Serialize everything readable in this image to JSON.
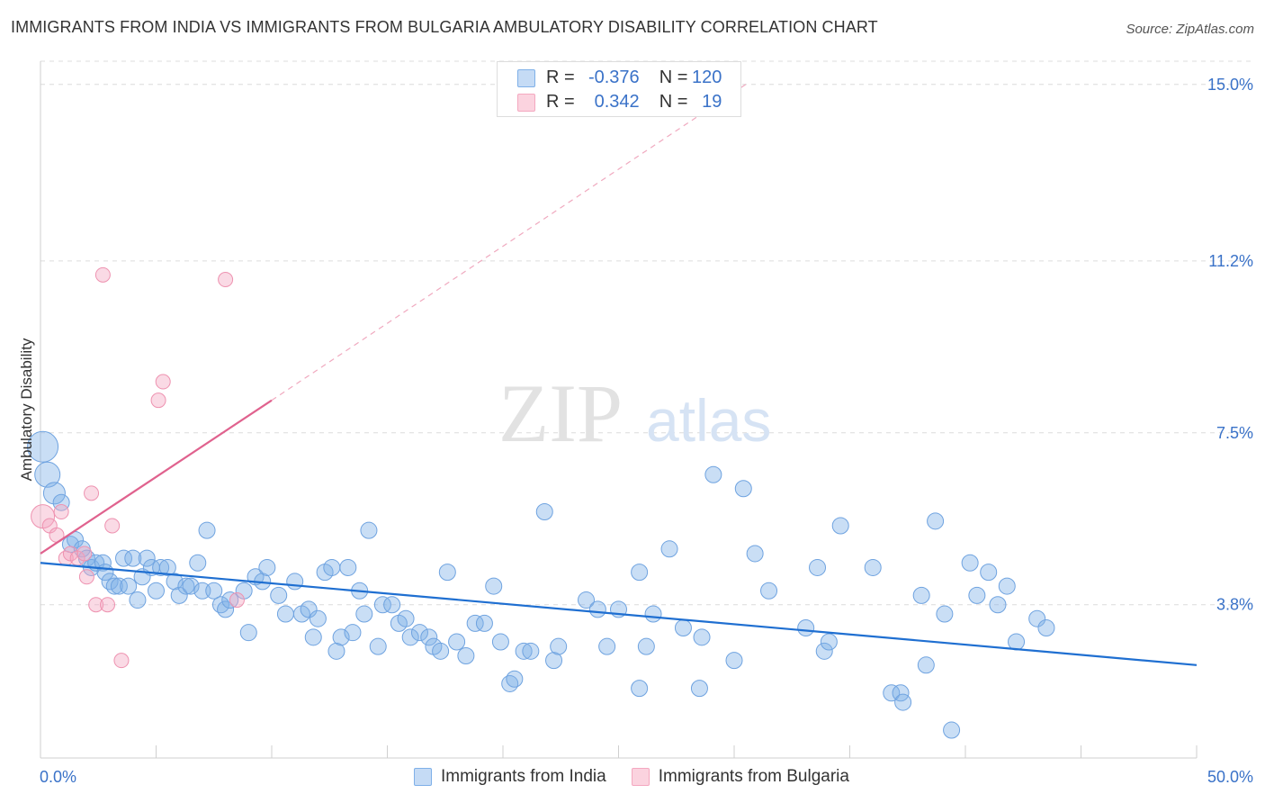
{
  "title": "IMMIGRANTS FROM INDIA VS IMMIGRANTS FROM BULGARIA AMBULATORY DISABILITY CORRELATION CHART",
  "source": "Source: ZipAtlas.com",
  "watermark": {
    "zip": "ZIP",
    "atlas": "atlas"
  },
  "colors": {
    "india": "#7fb0e8",
    "india_line": "#1f6fd1",
    "bulgaria": "#f4a8c0",
    "bulgaria_line": "#e0628e",
    "axis_label": "#3a72c8"
  },
  "stats": {
    "rows": [
      {
        "r_label": "R = ",
        "r_value": "-0.376",
        "n_label": "N = ",
        "n_value": "120"
      },
      {
        "r_label": "R = ",
        "r_value": "0.342",
        "n_label": "N = ",
        "n_value": "19"
      }
    ]
  },
  "legend": {
    "india": "Immigrants from India",
    "bulgaria": "Immigrants from Bulgaria"
  },
  "chart_data": {
    "type": "scatter",
    "title": "IMMIGRANTS FROM INDIA VS IMMIGRANTS FROM BULGARIA AMBULATORY DISABILITY CORRELATION CHART",
    "xlabel": "",
    "ylabel": "Ambulatory Disability",
    "xlim": [
      0,
      50
    ],
    "ylim": [
      0.5,
      15.5
    ],
    "x_tick_labels": [
      "0.0%",
      "50.0%"
    ],
    "y_ticks": [
      3.8,
      7.5,
      11.2,
      15.0
    ],
    "y_tick_labels": [
      "3.8%",
      "7.5%",
      "11.2%",
      "15.0%"
    ],
    "series": [
      {
        "name": "Immigrants from India",
        "r": -0.376,
        "n": 120,
        "trend": {
          "x": [
            0,
            50
          ],
          "y": [
            4.7,
            2.5
          ]
        },
        "points": [
          [
            0.1,
            7.2
          ],
          [
            0.3,
            6.6
          ],
          [
            0.6,
            6.2
          ],
          [
            0.9,
            6.0
          ],
          [
            1.3,
            5.1
          ],
          [
            1.5,
            5.2
          ],
          [
            1.8,
            5.0
          ],
          [
            2.0,
            4.8
          ],
          [
            2.2,
            4.6
          ],
          [
            2.4,
            4.7
          ],
          [
            2.7,
            4.7
          ],
          [
            2.8,
            4.5
          ],
          [
            3.0,
            4.3
          ],
          [
            3.2,
            4.2
          ],
          [
            3.4,
            4.2
          ],
          [
            3.6,
            4.8
          ],
          [
            3.8,
            4.2
          ],
          [
            4.0,
            4.8
          ],
          [
            4.2,
            3.9
          ],
          [
            4.4,
            4.4
          ],
          [
            4.6,
            4.8
          ],
          [
            4.8,
            4.6
          ],
          [
            5.0,
            4.1
          ],
          [
            5.2,
            4.6
          ],
          [
            5.5,
            4.6
          ],
          [
            5.8,
            4.3
          ],
          [
            6.0,
            4.0
          ],
          [
            6.3,
            4.2
          ],
          [
            6.5,
            4.2
          ],
          [
            6.8,
            4.7
          ],
          [
            7.0,
            4.1
          ],
          [
            7.2,
            5.4
          ],
          [
            7.5,
            4.1
          ],
          [
            7.8,
            3.8
          ],
          [
            8.0,
            3.7
          ],
          [
            8.2,
            3.9
          ],
          [
            8.8,
            4.1
          ],
          [
            9.0,
            3.2
          ],
          [
            9.3,
            4.4
          ],
          [
            9.6,
            4.3
          ],
          [
            9.8,
            4.6
          ],
          [
            10.3,
            4.0
          ],
          [
            10.6,
            3.6
          ],
          [
            11.0,
            4.3
          ],
          [
            11.3,
            3.6
          ],
          [
            11.6,
            3.7
          ],
          [
            11.8,
            3.1
          ],
          [
            12.0,
            3.5
          ],
          [
            12.3,
            4.5
          ],
          [
            12.6,
            4.6
          ],
          [
            12.8,
            2.8
          ],
          [
            13.0,
            3.1
          ],
          [
            13.3,
            4.6
          ],
          [
            13.5,
            3.2
          ],
          [
            13.8,
            4.1
          ],
          [
            14.0,
            3.6
          ],
          [
            14.2,
            5.4
          ],
          [
            14.6,
            2.9
          ],
          [
            14.8,
            3.8
          ],
          [
            15.2,
            3.8
          ],
          [
            15.5,
            3.4
          ],
          [
            15.8,
            3.5
          ],
          [
            16.0,
            3.1
          ],
          [
            16.4,
            3.2
          ],
          [
            16.8,
            3.1
          ],
          [
            17.0,
            2.9
          ],
          [
            17.3,
            2.8
          ],
          [
            17.6,
            4.5
          ],
          [
            18.0,
            3.0
          ],
          [
            18.4,
            2.7
          ],
          [
            18.8,
            3.4
          ],
          [
            19.2,
            3.4
          ],
          [
            19.6,
            4.2
          ],
          [
            19.9,
            3.0
          ],
          [
            20.3,
            2.1
          ],
          [
            20.5,
            2.2
          ],
          [
            20.9,
            2.8
          ],
          [
            21.2,
            2.8
          ],
          [
            21.8,
            5.8
          ],
          [
            22.2,
            2.6
          ],
          [
            22.4,
            2.9
          ],
          [
            23.6,
            3.9
          ],
          [
            24.1,
            3.7
          ],
          [
            24.5,
            2.9
          ],
          [
            25.0,
            3.7
          ],
          [
            25.9,
            2.0
          ],
          [
            25.9,
            4.5
          ],
          [
            26.2,
            2.9
          ],
          [
            26.5,
            3.6
          ],
          [
            27.2,
            5.0
          ],
          [
            27.8,
            3.3
          ],
          [
            28.5,
            2.0
          ],
          [
            28.6,
            3.1
          ],
          [
            29.1,
            6.6
          ],
          [
            30.0,
            2.6
          ],
          [
            30.4,
            6.3
          ],
          [
            30.9,
            4.9
          ],
          [
            31.5,
            4.1
          ],
          [
            33.1,
            3.3
          ],
          [
            33.6,
            4.6
          ],
          [
            33.9,
            2.8
          ],
          [
            34.1,
            3.0
          ],
          [
            34.6,
            5.5
          ],
          [
            36.0,
            4.6
          ],
          [
            36.8,
            1.9
          ],
          [
            37.2,
            1.9
          ],
          [
            37.3,
            1.7
          ],
          [
            38.1,
            4.0
          ],
          [
            38.3,
            2.5
          ],
          [
            38.7,
            5.6
          ],
          [
            39.1,
            3.6
          ],
          [
            39.4,
            1.1
          ],
          [
            40.2,
            4.7
          ],
          [
            40.5,
            4.0
          ],
          [
            41.0,
            4.5
          ],
          [
            41.4,
            3.8
          ],
          [
            41.8,
            4.2
          ],
          [
            42.2,
            3.0
          ],
          [
            43.1,
            3.5
          ],
          [
            43.5,
            3.3
          ]
        ]
      },
      {
        "name": "Immigrants from Bulgaria",
        "r": 0.342,
        "n": 19,
        "trend": {
          "x": [
            0,
            10
          ],
          "y": [
            4.9,
            8.2
          ]
        },
        "trend_extension": {
          "x": [
            10,
            30.5
          ],
          "y": [
            8.2,
            15.0
          ]
        },
        "points": [
          [
            0.1,
            5.7
          ],
          [
            0.4,
            5.5
          ],
          [
            0.7,
            5.3
          ],
          [
            0.9,
            5.8
          ],
          [
            1.1,
            4.8
          ],
          [
            1.3,
            4.9
          ],
          [
            1.6,
            4.8
          ],
          [
            1.9,
            4.9
          ],
          [
            2.0,
            4.4
          ],
          [
            2.2,
            6.2
          ],
          [
            2.4,
            3.8
          ],
          [
            2.7,
            10.9
          ],
          [
            2.9,
            3.8
          ],
          [
            3.1,
            5.5
          ],
          [
            3.5,
            2.6
          ],
          [
            5.1,
            8.2
          ],
          [
            5.3,
            8.6
          ],
          [
            8.0,
            10.8
          ],
          [
            8.5,
            3.9
          ]
        ]
      }
    ]
  }
}
